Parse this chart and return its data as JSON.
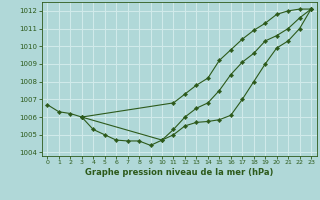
{
  "background_color": "#b0d8d8",
  "grid_color": "#d0eaea",
  "line_color": "#2d5a1b",
  "xlabel": "Graphe pression niveau de la mer (hPa)",
  "xlim": [
    -0.5,
    23.5
  ],
  "ylim": [
    1003.8,
    1012.5
  ],
  "yticks": [
    1004,
    1005,
    1006,
    1007,
    1008,
    1009,
    1010,
    1011,
    1012
  ],
  "xticks": [
    0,
    1,
    2,
    3,
    4,
    5,
    6,
    7,
    8,
    9,
    10,
    11,
    12,
    13,
    14,
    15,
    16,
    17,
    18,
    19,
    20,
    21,
    22,
    23
  ],
  "series": [
    {
      "x": [
        0,
        1,
        2,
        3,
        4,
        5,
        6,
        7,
        8,
        9,
        10,
        11,
        12,
        13,
        14,
        15,
        16,
        17,
        18,
        19,
        20,
        21,
        22,
        23
      ],
      "y": [
        1006.7,
        1006.3,
        1006.2,
        1006.0,
        1005.3,
        1005.0,
        1004.7,
        1004.65,
        1004.65,
        1004.4,
        1004.7,
        1005.0,
        1005.5,
        1005.7,
        1005.75,
        1005.85,
        1006.1,
        1007.0,
        1008.0,
        1009.0,
        1009.9,
        1010.3,
        1011.0,
        1012.1
      ],
      "has_markers": true
    },
    {
      "x": [
        3,
        11,
        12,
        13,
        14,
        15,
        16,
        17,
        18,
        19,
        20,
        21,
        22,
        23
      ],
      "y": [
        1006.0,
        1006.8,
        1007.3,
        1007.8,
        1008.2,
        1009.2,
        1009.8,
        1010.4,
        1010.9,
        1011.3,
        1011.8,
        1012.0,
        1012.1,
        1012.1
      ],
      "has_markers": true
    },
    {
      "x": [
        3,
        10,
        11,
        12,
        13,
        14,
        15,
        16,
        17,
        18,
        19,
        20,
        21,
        22,
        23
      ],
      "y": [
        1006.0,
        1004.7,
        1005.3,
        1006.0,
        1006.5,
        1006.8,
        1007.5,
        1008.4,
        1009.1,
        1009.6,
        1010.3,
        1010.6,
        1011.0,
        1011.6,
        1012.1
      ],
      "has_markers": true
    }
  ]
}
